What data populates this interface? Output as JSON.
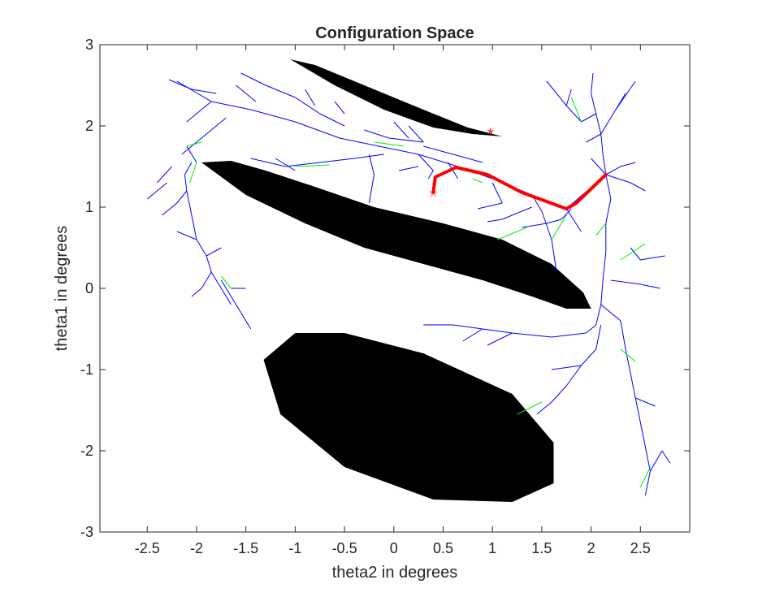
{
  "chart_data": {
    "type": "scatter",
    "title": "Configuration Space",
    "xlabel": "theta2 in degrees",
    "ylabel": "theta1 in degrees",
    "xlim": [
      -2.98,
      3.0
    ],
    "ylim": [
      -3.0,
      3.0
    ],
    "xticks": [
      -2.5,
      -2,
      -1.5,
      -1,
      -0.5,
      0,
      0.5,
      1,
      1.5,
      2,
      2.5
    ],
    "xtick_labels": [
      "-2.5",
      "-2",
      "-1.5",
      "-1",
      "-0.5",
      "0",
      "0.5",
      "1",
      "1.5",
      "2",
      "2.5"
    ],
    "yticks": [
      3,
      2,
      1,
      0,
      -1,
      -2,
      -3
    ],
    "ytick_labels": [
      "3",
      "2",
      "1",
      "0",
      "-1",
      "-2",
      "-3"
    ],
    "grid": false,
    "colors": {
      "obstacle": "#000000",
      "tree": "#0000ff",
      "tree_extra": "#00ee00",
      "path": "#ff0000",
      "axes": "#262626"
    },
    "obstacles": [
      [
        [
          -1.05,
          2.82
        ],
        [
          -0.8,
          2.75
        ],
        [
          -0.3,
          2.5
        ],
        [
          0.3,
          2.2
        ],
        [
          0.75,
          1.98
        ],
        [
          1.1,
          1.87
        ],
        [
          0.8,
          1.9
        ],
        [
          0.4,
          1.98
        ],
        [
          -0.1,
          2.2
        ],
        [
          -0.6,
          2.5
        ],
        [
          -1.05,
          2.82
        ]
      ],
      [
        [
          -1.95,
          1.55
        ],
        [
          -1.65,
          1.57
        ],
        [
          -1.3,
          1.45
        ],
        [
          -0.8,
          1.25
        ],
        [
          -0.2,
          1.0
        ],
        [
          0.5,
          0.8
        ],
        [
          1.1,
          0.6
        ],
        [
          1.6,
          0.3
        ],
        [
          1.92,
          -0.05
        ],
        [
          2.0,
          -0.25
        ],
        [
          1.75,
          -0.25
        ],
        [
          1.4,
          -0.1
        ],
        [
          0.9,
          0.1
        ],
        [
          0.3,
          0.3
        ],
        [
          -0.3,
          0.5
        ],
        [
          -0.9,
          0.8
        ],
        [
          -1.5,
          1.15
        ],
        [
          -1.95,
          1.55
        ]
      ],
      [
        [
          -1.32,
          -0.88
        ],
        [
          -1.0,
          -0.55
        ],
        [
          -0.5,
          -0.55
        ],
        [
          0.3,
          -0.8
        ],
        [
          1.2,
          -1.3
        ],
        [
          1.62,
          -1.9
        ],
        [
          1.62,
          -2.4
        ],
        [
          1.2,
          -2.63
        ],
        [
          0.4,
          -2.6
        ],
        [
          -0.5,
          -2.2
        ],
        [
          -1.15,
          -1.55
        ],
        [
          -1.32,
          -0.88
        ]
      ]
    ],
    "tree_segments": [
      [
        -2.2,
        2.55,
        -1.85,
        2.3
      ],
      [
        -1.85,
        2.3,
        -1.45,
        2.2
      ],
      [
        -1.45,
        2.2,
        -1.0,
        2.05
      ],
      [
        -1.0,
        2.05,
        -0.55,
        1.85
      ],
      [
        -0.55,
        1.85,
        -0.15,
        1.75
      ],
      [
        -0.15,
        1.75,
        0.25,
        1.65
      ],
      [
        0.25,
        1.65,
        0.65,
        1.5
      ],
      [
        0.65,
        1.5,
        1.0,
        1.35
      ],
      [
        1.0,
        1.35,
        1.4,
        1.15
      ],
      [
        1.4,
        1.15,
        1.75,
        0.98
      ],
      [
        1.75,
        0.98,
        2.15,
        1.4
      ],
      [
        -2.28,
        2.57,
        -2.05,
        2.45
      ],
      [
        -2.05,
        2.45,
        -1.8,
        2.4
      ],
      [
        -1.6,
        2.5,
        -1.4,
        2.3
      ],
      [
        -1.55,
        2.65,
        -1.3,
        2.5
      ],
      [
        -1.3,
        2.5,
        -1.0,
        2.35
      ],
      [
        -1.0,
        2.35,
        -0.75,
        2.15
      ],
      [
        -0.75,
        2.15,
        -0.5,
        2.0
      ],
      [
        -0.9,
        2.45,
        -0.8,
        2.25
      ],
      [
        -0.6,
        2.3,
        -0.5,
        2.15
      ],
      [
        -1.85,
        2.3,
        -2.1,
        2.05
      ],
      [
        -1.7,
        2.1,
        -2.0,
        1.8
      ],
      [
        -2.0,
        1.8,
        -2.15,
        1.65
      ],
      [
        -2.1,
        1.75,
        -2.0,
        1.55
      ],
      [
        -2.05,
        1.55,
        -2.12,
        1.4
      ],
      [
        -2.12,
        1.4,
        -2.1,
        1.2
      ],
      [
        -2.1,
        1.2,
        -2.2,
        1.05
      ],
      [
        -2.2,
        1.05,
        -2.35,
        0.9
      ],
      [
        -2.1,
        1.2,
        -2.05,
        0.9
      ],
      [
        -2.05,
        0.9,
        -2.0,
        0.6
      ],
      [
        -2.0,
        0.6,
        -1.9,
        0.4
      ],
      [
        -1.9,
        0.4,
        -1.85,
        0.2
      ],
      [
        -1.85,
        0.2,
        -1.95,
        0.0
      ],
      [
        -1.95,
        0.0,
        -2.05,
        -0.1
      ],
      [
        -1.85,
        0.2,
        -1.75,
        0.0
      ],
      [
        -1.75,
        0.0,
        -1.65,
        -0.2
      ],
      [
        -1.65,
        0.0,
        -1.5,
        0.0
      ],
      [
        -1.75,
        0.1,
        -1.55,
        -0.3
      ],
      [
        -1.55,
        -0.3,
        -1.45,
        -0.5
      ],
      [
        -2.25,
        1.5,
        -2.4,
        1.3
      ],
      [
        -2.3,
        1.3,
        -2.5,
        1.1
      ],
      [
        -1.9,
        0.4,
        -1.75,
        0.5
      ],
      [
        -2.0,
        0.6,
        -2.2,
        0.7
      ],
      [
        -0.3,
        1.95,
        -0.05,
        1.85
      ],
      [
        -0.05,
        1.85,
        0.3,
        1.8
      ],
      [
        0.0,
        2.05,
        0.15,
        1.85
      ],
      [
        0.15,
        2.0,
        0.3,
        1.8
      ],
      [
        0.3,
        1.75,
        0.6,
        1.65
      ],
      [
        0.6,
        1.65,
        0.9,
        1.55
      ],
      [
        -1.45,
        1.6,
        -1.1,
        1.5
      ],
      [
        -1.1,
        1.5,
        -0.75,
        1.55
      ],
      [
        -0.75,
        1.55,
        -0.4,
        1.6
      ],
      [
        -0.4,
        1.6,
        -0.1,
        1.65
      ],
      [
        -0.25,
        1.65,
        -0.2,
        1.4
      ],
      [
        -0.2,
        1.4,
        -0.25,
        1.05
      ],
      [
        -1.2,
        1.6,
        -1.0,
        1.45
      ],
      [
        0.25,
        1.65,
        0.4,
        1.45
      ],
      [
        0.4,
        1.45,
        0.35,
        1.35
      ],
      [
        0.25,
        1.5,
        0.05,
        1.45
      ],
      [
        0.55,
        1.55,
        0.65,
        1.35
      ],
      [
        1.0,
        1.3,
        1.1,
        1.05
      ],
      [
        1.1,
        1.05,
        0.85,
        0.98
      ],
      [
        1.4,
        1.15,
        1.5,
        0.95
      ],
      [
        1.5,
        0.95,
        1.6,
        0.6
      ],
      [
        1.6,
        0.6,
        1.65,
        0.2
      ],
      [
        1.4,
        1.0,
        1.1,
        0.85
      ],
      [
        1.1,
        0.85,
        0.95,
        0.82
      ],
      [
        2.15,
        1.4,
        2.12,
        1.65
      ],
      [
        2.12,
        1.65,
        2.1,
        1.9
      ],
      [
        2.1,
        1.9,
        2.05,
        2.15
      ],
      [
        2.05,
        2.15,
        2.0,
        2.4
      ],
      [
        2.0,
        2.4,
        2.02,
        2.65
      ],
      [
        2.05,
        2.15,
        1.9,
        2.05
      ],
      [
        1.9,
        2.05,
        1.75,
        2.25
      ],
      [
        1.75,
        2.25,
        1.55,
        2.55
      ],
      [
        1.75,
        2.25,
        1.8,
        2.45
      ],
      [
        2.1,
        1.9,
        2.25,
        2.2
      ],
      [
        2.25,
        2.2,
        2.45,
        2.55
      ],
      [
        2.25,
        2.2,
        2.35,
        2.4
      ],
      [
        2.1,
        1.9,
        1.95,
        1.8
      ],
      [
        2.15,
        1.4,
        2.4,
        1.3
      ],
      [
        2.4,
        1.3,
        2.55,
        1.2
      ],
      [
        2.15,
        1.4,
        2.3,
        1.5
      ],
      [
        2.3,
        1.5,
        2.45,
        1.55
      ],
      [
        2.15,
        1.4,
        2.0,
        1.6
      ],
      [
        2.15,
        1.4,
        2.05,
        1.3
      ],
      [
        2.15,
        1.4,
        2.2,
        1.1
      ],
      [
        2.2,
        1.1,
        2.15,
        0.8
      ],
      [
        2.15,
        0.8,
        2.15,
        0.45
      ],
      [
        2.15,
        0.45,
        2.12,
        0.1
      ],
      [
        2.12,
        0.1,
        2.1,
        -0.2
      ],
      [
        2.1,
        -0.2,
        2.05,
        -0.45
      ],
      [
        2.05,
        -0.45,
        1.95,
        -0.55
      ],
      [
        1.95,
        -0.55,
        1.6,
        -0.6
      ],
      [
        1.6,
        -0.6,
        1.2,
        -0.55
      ],
      [
        1.2,
        -0.55,
        0.9,
        -0.5
      ],
      [
        0.9,
        -0.5,
        0.6,
        -0.45
      ],
      [
        0.6,
        -0.45,
        0.3,
        -0.45
      ],
      [
        1.2,
        -0.55,
        0.95,
        -0.7
      ],
      [
        0.9,
        -0.5,
        0.7,
        -0.65
      ],
      [
        2.2,
        0.1,
        2.5,
        0.05
      ],
      [
        2.5,
        0.05,
        2.7,
        0.0
      ],
      [
        2.4,
        0.5,
        2.5,
        0.35
      ],
      [
        2.5,
        0.35,
        2.75,
        0.4
      ],
      [
        1.8,
        0.98,
        1.7,
        0.85
      ],
      [
        1.7,
        0.85,
        1.55,
        0.8
      ],
      [
        1.55,
        0.8,
        1.3,
        0.75
      ],
      [
        1.75,
        0.98,
        1.9,
        0.7
      ],
      [
        2.1,
        -0.45,
        2.05,
        -0.75
      ],
      [
        2.05,
        -0.75,
        1.9,
        -0.95
      ],
      [
        1.9,
        -0.95,
        1.75,
        -1.2
      ],
      [
        1.75,
        -1.2,
        1.6,
        -1.4
      ],
      [
        1.6,
        -1.4,
        1.45,
        -1.55
      ],
      [
        1.9,
        -0.95,
        1.6,
        -1.0
      ],
      [
        2.1,
        -0.2,
        2.3,
        -0.4
      ],
      [
        2.3,
        -0.4,
        2.35,
        -0.75
      ],
      [
        2.35,
        -0.75,
        2.4,
        -1.05
      ],
      [
        2.4,
        -1.05,
        2.45,
        -1.35
      ],
      [
        2.45,
        -1.35,
        2.5,
        -1.65
      ],
      [
        2.5,
        -1.65,
        2.55,
        -1.95
      ],
      [
        2.55,
        -1.95,
        2.6,
        -2.25
      ],
      [
        2.6,
        -2.25,
        2.55,
        -2.55
      ],
      [
        2.6,
        -2.25,
        2.72,
        -2.0
      ],
      [
        2.72,
        -2.0,
        2.8,
        -2.15
      ],
      [
        2.45,
        -1.35,
        2.65,
        -1.45
      ]
    ],
    "tree_extra_segments": [
      [
        -1.95,
        1.8,
        -2.1,
        1.75
      ],
      [
        -2.0,
        1.55,
        -2.07,
        1.3
      ],
      [
        -1.75,
        0.15,
        -1.65,
        0.0
      ],
      [
        -0.65,
        1.52,
        -1.0,
        1.5
      ],
      [
        0.1,
        1.75,
        -0.2,
        1.8
      ],
      [
        0.9,
        1.3,
        0.8,
        1.35
      ],
      [
        1.35,
        0.75,
        1.05,
        0.6
      ],
      [
        1.75,
        0.9,
        1.6,
        0.6
      ],
      [
        1.9,
        2.05,
        1.8,
        2.35
      ],
      [
        2.15,
        0.8,
        2.05,
        0.65
      ],
      [
        2.3,
        0.35,
        2.55,
        0.55
      ],
      [
        2.3,
        -0.75,
        2.45,
        -0.9
      ],
      [
        1.5,
        -1.4,
        1.25,
        -1.55
      ],
      [
        2.6,
        -2.2,
        2.5,
        -2.45
      ]
    ],
    "path": {
      "name": "",
      "x": [
        0.4,
        0.42,
        0.63,
        0.95,
        1.3,
        1.75,
        1.85,
        2.15
      ],
      "y": [
        1.18,
        1.37,
        1.49,
        1.4,
        1.18,
        0.98,
        1.05,
        1.4
      ]
    },
    "markers": [
      {
        "x": 0.98,
        "y": 1.88,
        "symbol": "*"
      },
      {
        "x": 0.4,
        "y": 1.18,
        "symbol": "☆"
      }
    ]
  }
}
